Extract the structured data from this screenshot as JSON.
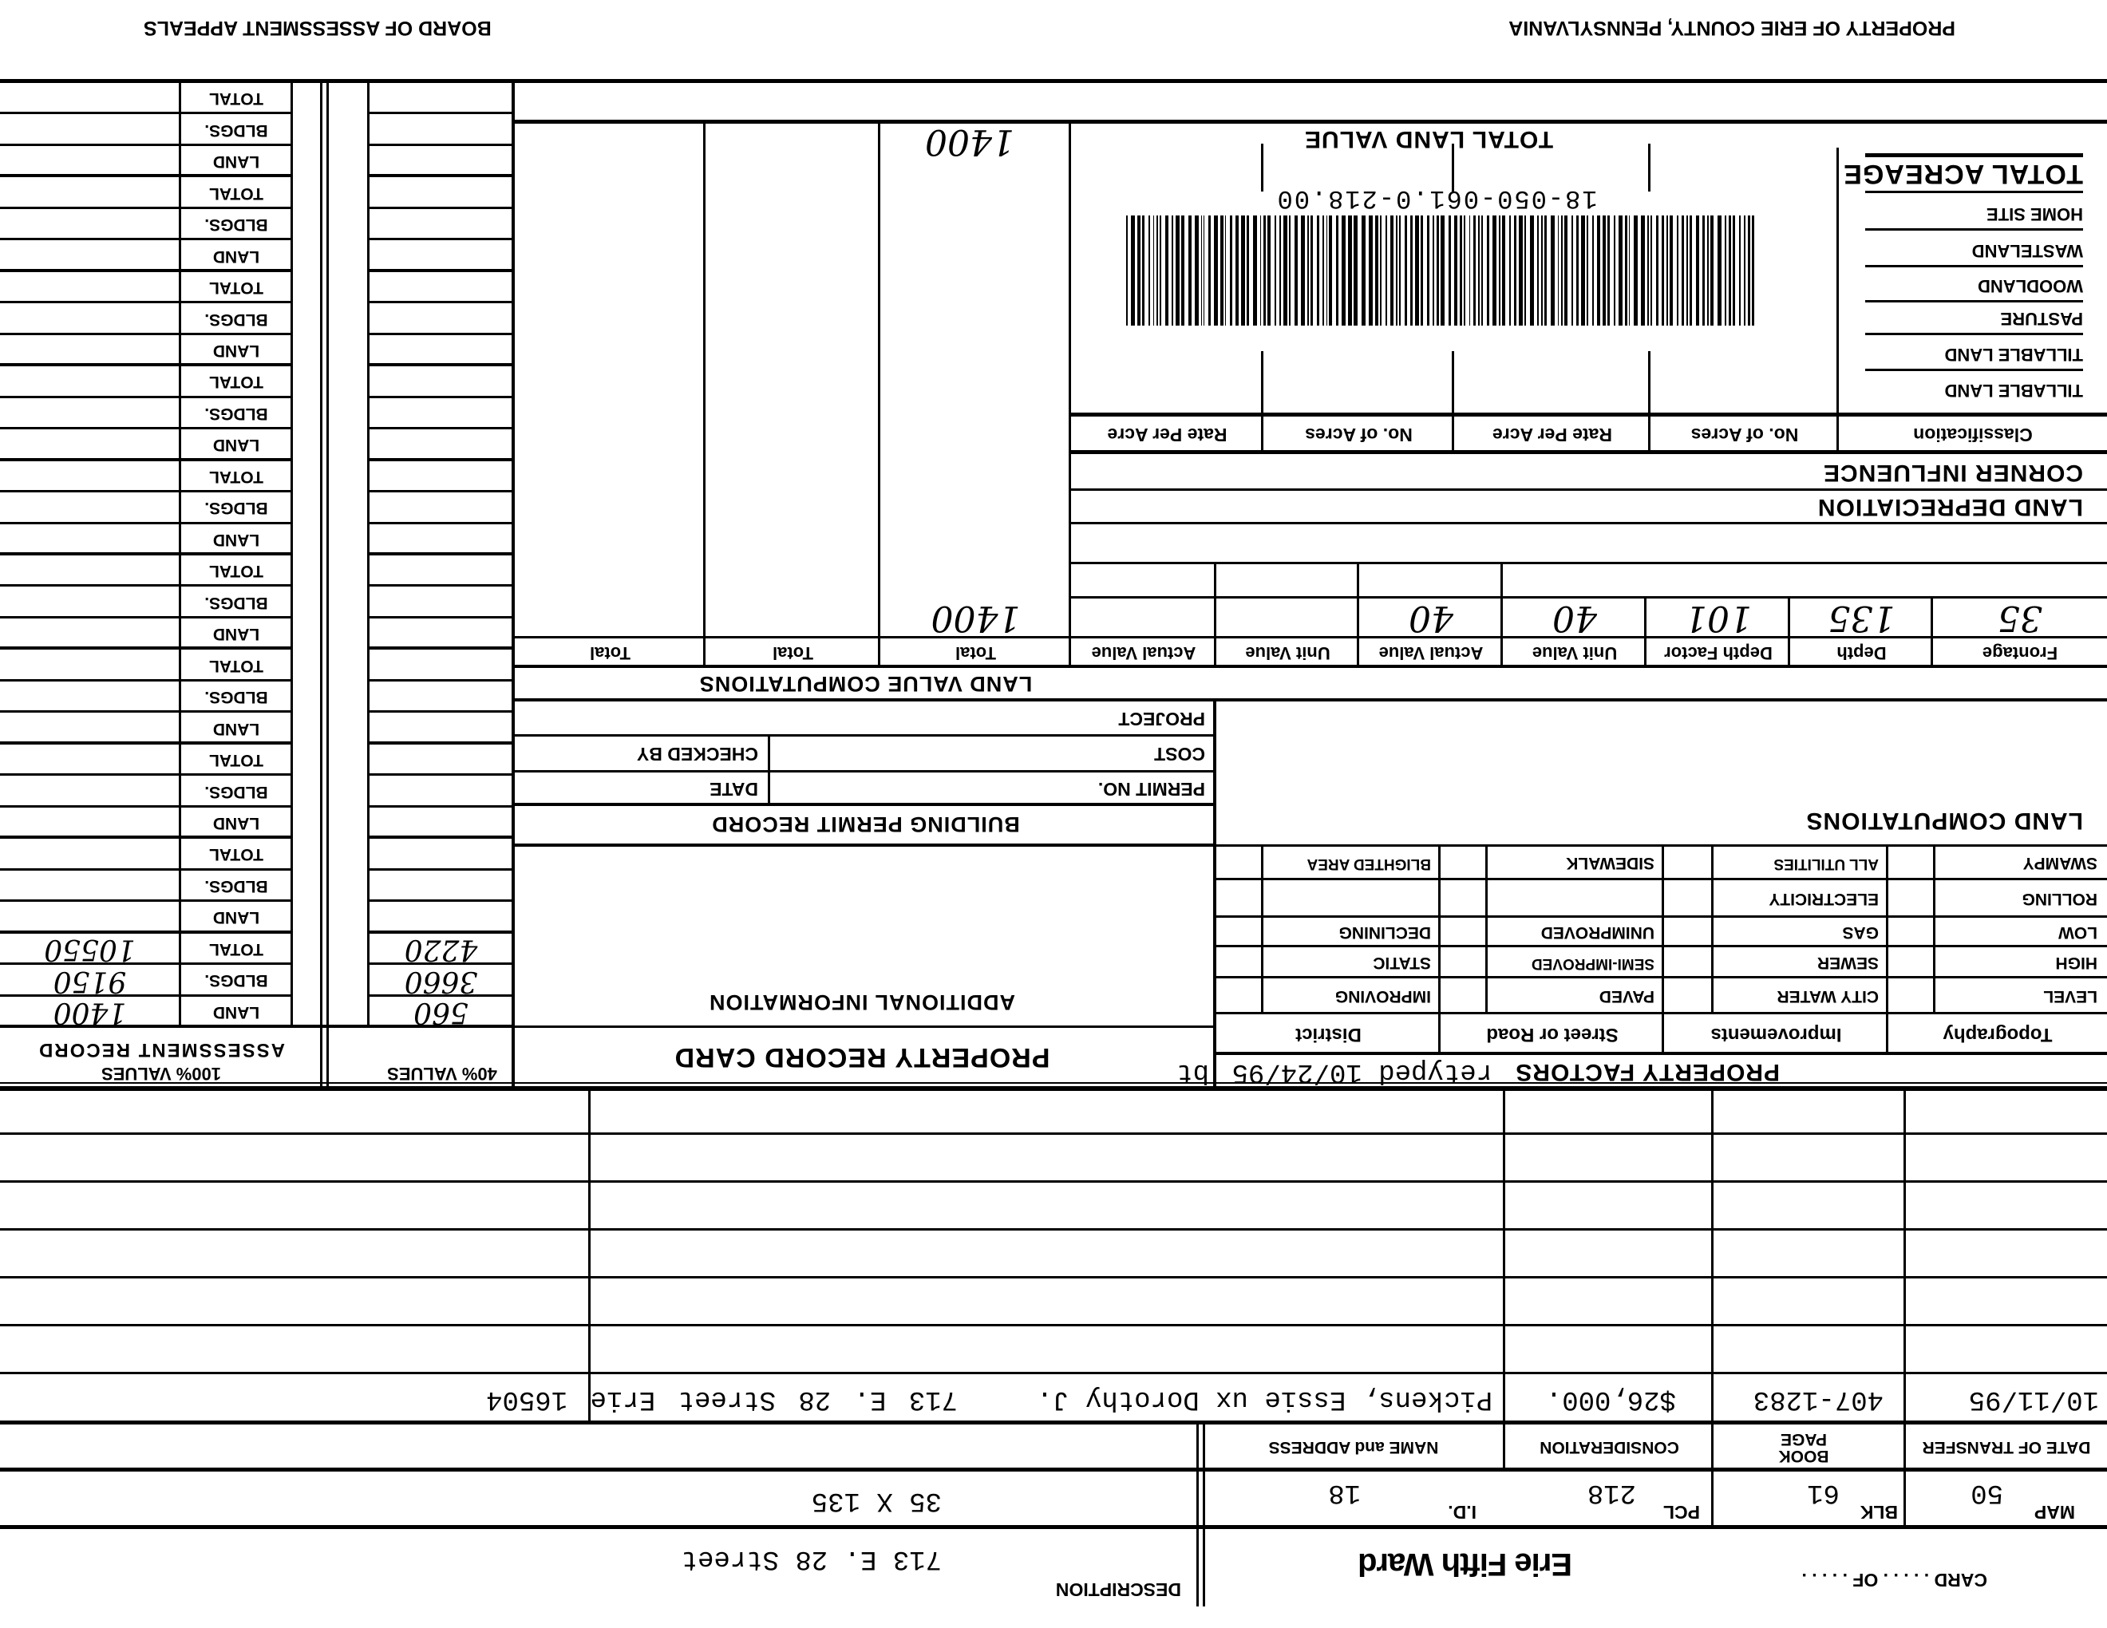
{
  "header": {
    "county": "PROPERTY OF ERIE COUNTY, PENNSYLVANIA",
    "board": "BOARD OF ASSESSMENT APPEALS"
  },
  "card": {
    "card_label": "CARD . . . . . OF . . . . .",
    "ward": "Erie Fifth Ward",
    "description_label": "DESCRIPTION",
    "description_address": "713 E. 28 Street",
    "description_dims": "35 X 135"
  },
  "parcel": {
    "map_label": "MAP",
    "map": "50",
    "blk_label": "BLK",
    "blk": "61",
    "pcl_label": "PCL",
    "pcl": "218",
    "id_label": "I.D.",
    "id": "18"
  },
  "transfers": {
    "headers": [
      "DATE OF TRANSFER",
      "BOOK PAGE",
      "CONSIDERATION",
      "NAME and ADDRESS"
    ],
    "rows": [
      {
        "date": "10/11/95",
        "book_page": "407-1283",
        "consideration": "$26,000.",
        "name": "Pickens, Essie ux Dorothy J.",
        "address": "713 E. 28 Street  Erie  16504"
      }
    ]
  },
  "property_factors": {
    "title": "PROPERTY FACTORS",
    "note": "retyped 10/24/95",
    "initials": "bt",
    "headers": [
      "Topography",
      "Improvements",
      "Street or Road",
      "District"
    ],
    "rows": [
      [
        "LEVEL",
        "CITY WATER",
        "PAVED",
        "IMPROVING"
      ],
      [
        "HIGH",
        "SEWER",
        "SEMI-IMPROVED",
        "STATIC"
      ],
      [
        "LOW",
        "GAS",
        "UNIMPROVED",
        "DECLINING"
      ],
      [
        "ROLLING",
        "ELECTRICITY",
        "",
        ""
      ],
      [
        "SWAMPY",
        "ALL UTILITIES",
        "SIDEWALK",
        "BLIGHTED AREA"
      ]
    ]
  },
  "record_card": {
    "title": "PROPERTY RECORD CARD",
    "additional_info": "ADDITIONAL INFORMATION"
  },
  "building_permit": {
    "title": "BUILDING PERMIT RECORD",
    "permit_no": "PERMIT NO.",
    "date": "DATE",
    "cost": "COST",
    "checked_by": "CHECKED BY",
    "project": "PROJECT"
  },
  "land_computations": {
    "title": "LAND COMPUTATIONS"
  },
  "land_value": {
    "title": "LAND VALUE COMPUTATIONS",
    "headers": [
      "Frontage",
      "Depth",
      "Depth Factor",
      "Unit Value",
      "Actual Value",
      "Unit Value",
      "Actual Value",
      "Total",
      "Total",
      "Total"
    ],
    "row": [
      "35",
      "135",
      "101",
      "40",
      "40",
      "",
      "",
      "1400",
      "",
      ""
    ]
  },
  "land_depreciation": "LAND DEPRECIATION",
  "corner_influence": "CORNER INFLUENCE",
  "acreage": {
    "headers": [
      "Classification",
      "No. of Acres",
      "Rate Per Acre",
      "No. of Acres",
      "Rate Per Acre"
    ],
    "rows": [
      "TILLABLE LAND",
      "TILLABLE LAND",
      "PASTURE",
      "WOODLAND",
      "WASTELAND",
      "HOME SITE"
    ],
    "total_acreage": "TOTAL ACREAGE",
    "total_land_value": "TOTAL LAND VALUE",
    "total_land_value_amount": "1400"
  },
  "barcode": {
    "text": "18-050-061.0-218.00"
  },
  "assessment": {
    "title": "ASSESSMENT RECORD",
    "col100": "100% VALUES",
    "col40": "40% VALUES",
    "row_labels": [
      "LAND",
      "BLDGS.",
      "TOTAL"
    ],
    "groups": [
      {
        "v100": [
          "1400",
          "9150",
          "10550"
        ],
        "v40": [
          "560",
          "3660",
          "4220"
        ]
      },
      {
        "v100": [
          "",
          "",
          ""
        ],
        "v40": [
          "",
          "",
          ""
        ]
      },
      {
        "v100": [
          "",
          "",
          ""
        ],
        "v40": [
          "",
          "",
          ""
        ]
      },
      {
        "v100": [
          "",
          "",
          ""
        ],
        "v40": [
          "",
          "",
          ""
        ]
      },
      {
        "v100": [
          "",
          "",
          ""
        ],
        "v40": [
          "",
          "",
          ""
        ]
      },
      {
        "v100": [
          "",
          "",
          ""
        ],
        "v40": [
          "",
          "",
          ""
        ]
      },
      {
        "v100": [
          "",
          "",
          ""
        ],
        "v40": [
          "",
          "",
          ""
        ]
      },
      {
        "v100": [
          "",
          "",
          ""
        ],
        "v40": [
          "",
          "",
          ""
        ]
      },
      {
        "v100": [
          "",
          "",
          ""
        ],
        "v40": [
          "",
          "",
          ""
        ]
      },
      {
        "v100": [
          "",
          "",
          ""
        ],
        "v40": [
          "",
          "",
          ""
        ]
      }
    ]
  }
}
